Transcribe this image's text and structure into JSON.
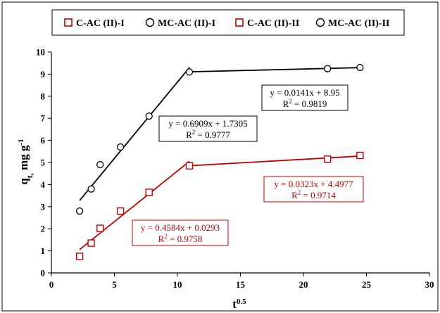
{
  "colors": {
    "black_series": "#000000",
    "red_series": "#c00000"
  },
  "chart_data": {
    "type": "scatter",
    "xlabel": "t",
    "xlabel_sup": "0.5",
    "ylabel_main": "q",
    "ylabel_sub": "t,",
    "ylabel_unit": " mg g",
    "ylabel_unit_sup": "-1",
    "xlim": [
      0,
      30
    ],
    "ylim": [
      0,
      10
    ],
    "x_ticks": [
      "0",
      "5",
      "10",
      "15",
      "20",
      "25",
      "30"
    ],
    "y_ticks": [
      "0",
      "1",
      "2",
      "3",
      "4",
      "5",
      "6",
      "7",
      "8",
      "9",
      "10"
    ],
    "grid": false,
    "legend_position": "top",
    "legend": [
      {
        "label": "C-AC (II)-I",
        "marker": "square",
        "color": "#c00000"
      },
      {
        "label": "MC-AC (II)-I",
        "marker": "circle",
        "color": "#000000"
      },
      {
        "label": "C-AC (II)-II",
        "marker": "square",
        "color": "#c00000"
      },
      {
        "label": "MC-AC (II)-II",
        "marker": "circle",
        "color": "#000000"
      }
    ],
    "series": [
      {
        "name": "MC-AC (II)",
        "marker": "circle",
        "color": "#000000",
        "x": [
          2.24,
          3.16,
          3.87,
          5.48,
          7.75,
          10.95,
          21.91,
          24.49
        ],
        "y": [
          2.8,
          3.8,
          4.9,
          5.7,
          7.1,
          9.1,
          9.25,
          9.3
        ]
      },
      {
        "name": "C-AC (II)",
        "marker": "square",
        "color": "#c00000",
        "x": [
          2.24,
          3.16,
          3.87,
          5.48,
          7.75,
          10.95,
          21.91,
          24.49
        ],
        "y": [
          0.75,
          1.35,
          2.02,
          2.8,
          3.65,
          4.85,
          5.15,
          5.32
        ]
      }
    ],
    "fits": [
      {
        "series": "MC-AC (II)",
        "stage": "I",
        "slope": 0.6909,
        "intercept": 1.7305,
        "x_range": [
          2.24,
          10.95
        ],
        "color": "#000000",
        "equation": "y = 0.6909x + 1.7305",
        "r2_label": "R",
        "r2_sup": "2",
        "r2_value": " = 0.9777"
      },
      {
        "series": "MC-AC (II)",
        "stage": "II",
        "slope": 0.0141,
        "intercept": 8.95,
        "x_range": [
          10.95,
          24.49
        ],
        "color": "#000000",
        "equation": "y = 0.0141x + 8.95",
        "r2_label": "R",
        "r2_sup": "2",
        "r2_value": " = 0.9819"
      },
      {
        "series": "C-AC (II)",
        "stage": "I",
        "slope": 0.4584,
        "intercept": 0.0293,
        "x_range": [
          2.24,
          10.95
        ],
        "color": "#c00000",
        "equation": "y = 0.4584x + 0.0293",
        "r2_label": "R",
        "r2_sup": "2",
        "r2_value": " = 0.9758"
      },
      {
        "series": "C-AC (II)",
        "stage": "II",
        "slope": 0.0323,
        "intercept": 4.4977,
        "x_range": [
          10.95,
          24.49
        ],
        "color": "#c00000",
        "equation": "y = 0.0323x + 4.4977",
        "r2_label": "R",
        "r2_sup": "2",
        "r2_value": " = 0.9714"
      }
    ]
  }
}
